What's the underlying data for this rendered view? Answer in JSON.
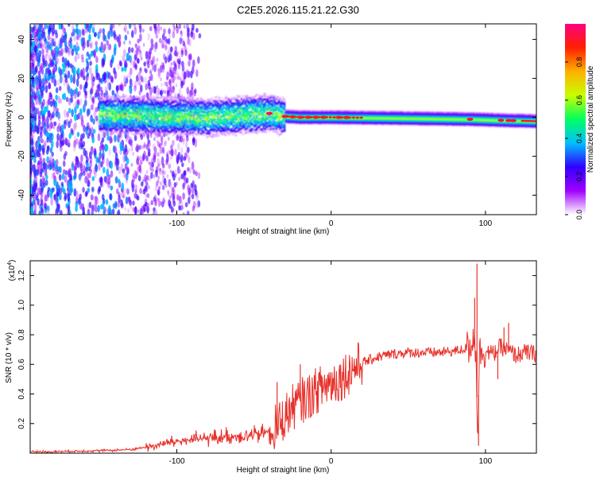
{
  "title": "C2E5.2026.115.21.22.G30",
  "chart_data": [
    {
      "type": "heatmap",
      "title": "C2E5.2026.115.21.22.G30",
      "xlabel": "Height of straight line (km)",
      "ylabel": "Frequency (Hz)",
      "xlim": [
        -195,
        133
      ],
      "ylim": [
        -50,
        48
      ],
      "xticks": [
        -100,
        0,
        100
      ],
      "xtick_labels": [
        "-100",
        "0",
        "100"
      ],
      "yticks": [
        -40,
        -20,
        0,
        20,
        40
      ],
      "ytick_labels": [
        "-40",
        "-20",
        "0",
        "20",
        "40"
      ],
      "colorbar": {
        "label": "Normalized spectral amplitude",
        "range": [
          0.0,
          1.0
        ],
        "ticks": [
          0.0,
          0.2,
          0.4,
          0.6,
          0.8
        ],
        "tick_labels": [
          "0.0",
          "0.2",
          "0.4",
          "0.6",
          "0.8"
        ],
        "colors": [
          "#ffffff",
          "#a000ff",
          "#3000ff",
          "#00c0ff",
          "#00ff60",
          "#c8ff00",
          "#ffb000",
          "#ff2000",
          "#ff0080"
        ]
      },
      "ridge_frequency_hz": [
        {
          "x": -150,
          "f": 1.5
        },
        {
          "x": -120,
          "f": 1.0
        },
        {
          "x": -100,
          "f": 0.5
        },
        {
          "x": -80,
          "f": 0.0
        },
        {
          "x": -60,
          "f": 1.0
        },
        {
          "x": -40,
          "f": 2.0
        },
        {
          "x": -30,
          "f": 0.5
        },
        {
          "x": -20,
          "f": 0.0
        },
        {
          "x": 0,
          "f": 0.0
        },
        {
          "x": 50,
          "f": -0.5
        },
        {
          "x": 90,
          "f": -1.0
        },
        {
          "x": 110,
          "f": -1.5
        },
        {
          "x": 133,
          "f": -2.0
        }
      ]
    },
    {
      "type": "line",
      "xlabel": "Height of straight line (km)",
      "ylabel": "SNR (10 * v/v)",
      "y_scale_label": "(x10",
      "y_scale_exponent": "4",
      "xlim": [
        -195,
        133
      ],
      "ylim": [
        0,
        1.3
      ],
      "xticks": [
        -100,
        0,
        100
      ],
      "xtick_labels": [
        "-100",
        "0",
        "100"
      ],
      "yticks": [
        0.2,
        0.4,
        0.6,
        0.8,
        1.0,
        1.2
      ],
      "ytick_labels": [
        "0.2",
        "0.4",
        "0.6",
        "0.8",
        "1.0",
        "1.2"
      ],
      "series": [
        {
          "name": "SNR",
          "color": "#e8302a",
          "x": [
            -195,
            -180,
            -160,
            -140,
            -130,
            -120,
            -110,
            -100,
            -90,
            -80,
            -70,
            -60,
            -50,
            -45,
            -40,
            -35,
            -30,
            -25,
            -20,
            -15,
            -10,
            -5,
            0,
            5,
            10,
            15,
            20,
            25,
            30,
            40,
            50,
            60,
            70,
            80,
            85,
            90,
            92,
            94,
            95,
            96,
            98,
            100,
            105,
            110,
            115,
            120,
            125,
            133
          ],
          "values": [
            0.01,
            0.01,
            0.015,
            0.02,
            0.025,
            0.04,
            0.06,
            0.08,
            0.09,
            0.1,
            0.11,
            0.12,
            0.12,
            0.13,
            0.15,
            0.18,
            0.25,
            0.31,
            0.35,
            0.38,
            0.42,
            0.45,
            0.48,
            0.5,
            0.54,
            0.58,
            0.61,
            0.63,
            0.65,
            0.67,
            0.68,
            0.68,
            0.68,
            0.69,
            0.7,
            0.72,
            0.8,
            0.66,
            0.1,
            0.68,
            0.69,
            0.69,
            0.67,
            0.72,
            0.69,
            0.66,
            0.68,
            0.67
          ]
        }
      ],
      "spikes": [
        {
          "x": -35,
          "y": 0.48
        },
        {
          "x": -20,
          "y": 0.6
        },
        {
          "x": 93,
          "y": 1.05
        },
        {
          "x": 94.5,
          "y": 1.28
        },
        {
          "x": 95.5,
          "y": 0.05
        },
        {
          "x": 112,
          "y": 0.85
        },
        {
          "x": 115,
          "y": 0.88
        },
        {
          "x": 108,
          "y": 0.5
        }
      ]
    }
  ]
}
